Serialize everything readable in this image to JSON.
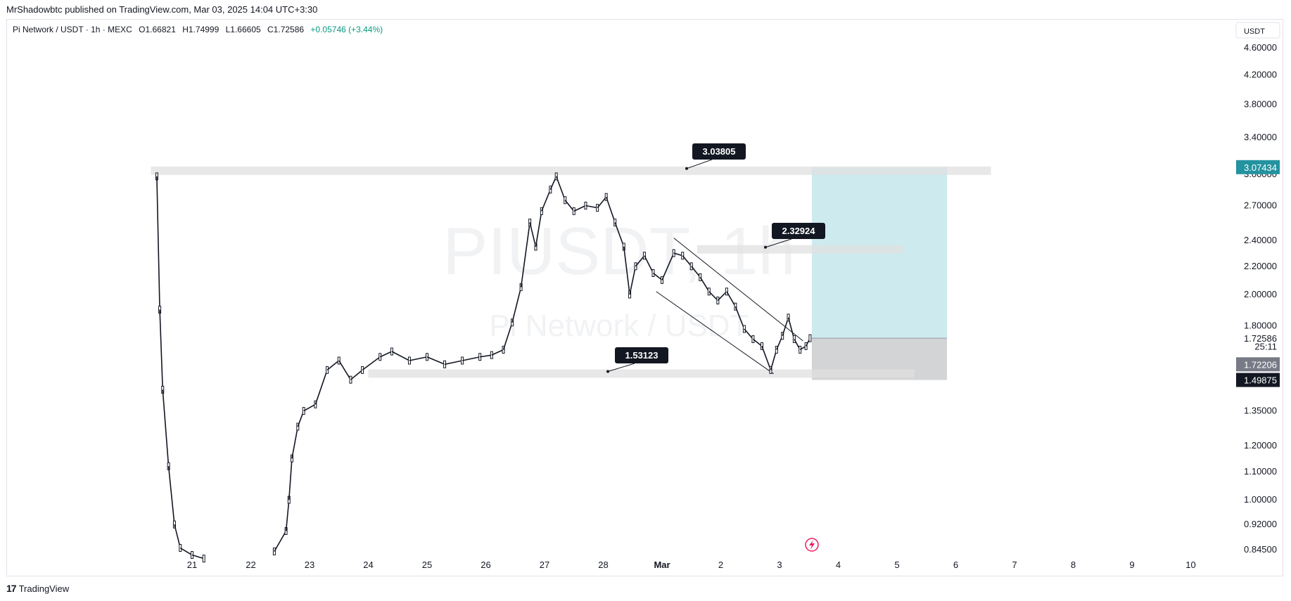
{
  "header": {
    "published_by": "MrShadowbtc published on TradingView.com, Mar 03, 2025 14:04 UTC+3:30"
  },
  "legend": {
    "symbol": "Pi Network / USDT · 1h · MEXC",
    "open": "O1.66821",
    "high": "H1.74999",
    "low": "L1.66605",
    "close": "C1.72586",
    "change": "+0.05746 (+3.44%)"
  },
  "watermark": {
    "ticker": "PIUSDT, 1h",
    "name": "Pi Network / USDT"
  },
  "footer": {
    "logo_text": "TradingView",
    "logo_icon": "tradingview-logo-icon"
  },
  "colors": {
    "up": "#131722",
    "down": "#131722",
    "profit_zone": "#b2dfe6",
    "loss_zone": "#c8c9cc",
    "level_line": "#e0e0e0",
    "teal_badge": "#22939f",
    "dark_badge": "#131722",
    "gray_badge": "#787b86"
  },
  "chart_data": {
    "type": "candlestick",
    "symbol": "PIUSDT",
    "interval": "1h",
    "price_axis": {
      "unit": "USDT",
      "scale": "log",
      "ticks": [
        4.6,
        4.2,
        3.8,
        3.4,
        3.0,
        2.7,
        2.4,
        2.2,
        2.0,
        1.8,
        1.35,
        1.2,
        1.1,
        1.0,
        0.92,
        0.845
      ],
      "tick_labels": [
        "4.60000",
        "4.20000",
        "3.80000",
        "3.40000",
        "3.00000",
        "2.70000",
        "2.40000",
        "2.20000",
        "2.00000",
        "1.80000",
        "1.35000",
        "1.20000",
        "1.10000",
        "1.00000",
        "0.92000",
        "0.84500"
      ]
    },
    "time_axis": {
      "labels": [
        "21",
        "22",
        "23",
        "24",
        "25",
        "26",
        "27",
        "28",
        "Mar",
        "2",
        "3",
        "4",
        "5",
        "6",
        "7",
        "8",
        "9",
        "10"
      ],
      "label_days": [
        21,
        22,
        23,
        24,
        25,
        26,
        27,
        28,
        29,
        30,
        31,
        32,
        33,
        34,
        35,
        36,
        37,
        38
      ]
    },
    "price_badges": [
      {
        "label": "3.07434",
        "value": 3.07434,
        "style": "teal"
      },
      {
        "label": "1.72586",
        "value": 1.72586,
        "style": "plain"
      },
      {
        "label": "25:11",
        "value": 1.68,
        "style": "plain"
      },
      {
        "label": "1.72206",
        "value": 1.58,
        "style": "gray"
      },
      {
        "label": "1.49875",
        "value": 1.49875,
        "style": "dark"
      }
    ],
    "horizontal_levels": [
      {
        "label": "3.03805",
        "value": 3.03805,
        "from_day": 20.3,
        "to_day": 34.6
      },
      {
        "label": "2.32924",
        "value": 2.32924,
        "from_day": 29.6,
        "to_day": 33.1
      },
      {
        "label": "1.53123",
        "value": 1.53123,
        "from_day": 24.0,
        "to_day": 33.3
      }
    ],
    "position": {
      "type": "long",
      "entry": 1.72586,
      "target": 3.07434,
      "stop": 1.49875,
      "from_day": 31.55,
      "to_day": 33.85
    },
    "channel": {
      "upper": [
        [
          29.2,
          2.42
        ],
        [
          31.4,
          1.71
        ]
      ],
      "lower": [
        [
          28.9,
          2.02
        ],
        [
          30.9,
          1.53
        ]
      ]
    },
    "series": [
      {
        "day": 20.4,
        "close": 2.98
      },
      {
        "day": 20.45,
        "close": 1.9
      },
      {
        "day": 20.5,
        "close": 1.45
      },
      {
        "day": 20.6,
        "close": 1.12
      },
      {
        "day": 20.7,
        "close": 0.92
      },
      {
        "day": 20.8,
        "close": 0.85
      },
      {
        "day": 21.0,
        "close": 0.83
      },
      {
        "day": 21.2,
        "close": 0.82
      },
      {
        "day": 22.4,
        "close": 0.84
      },
      {
        "day": 22.6,
        "close": 0.9
      },
      {
        "day": 22.65,
        "close": 1.0
      },
      {
        "day": 22.7,
        "close": 1.15
      },
      {
        "day": 22.8,
        "close": 1.28
      },
      {
        "day": 22.9,
        "close": 1.35
      },
      {
        "day": 23.1,
        "close": 1.38
      },
      {
        "day": 23.3,
        "close": 1.55
      },
      {
        "day": 23.5,
        "close": 1.6
      },
      {
        "day": 23.7,
        "close": 1.5
      },
      {
        "day": 23.9,
        "close": 1.55
      },
      {
        "day": 24.2,
        "close": 1.62
      },
      {
        "day": 24.4,
        "close": 1.65
      },
      {
        "day": 24.7,
        "close": 1.6
      },
      {
        "day": 25.0,
        "close": 1.62
      },
      {
        "day": 25.3,
        "close": 1.58
      },
      {
        "day": 25.6,
        "close": 1.6
      },
      {
        "day": 25.9,
        "close": 1.62
      },
      {
        "day": 26.1,
        "close": 1.63
      },
      {
        "day": 26.3,
        "close": 1.66
      },
      {
        "day": 26.45,
        "close": 1.82
      },
      {
        "day": 26.6,
        "close": 2.05
      },
      {
        "day": 26.75,
        "close": 2.55
      },
      {
        "day": 26.85,
        "close": 2.35
      },
      {
        "day": 26.95,
        "close": 2.65
      },
      {
        "day": 27.1,
        "close": 2.85
      },
      {
        "day": 27.2,
        "close": 2.98
      },
      {
        "day": 27.35,
        "close": 2.75
      },
      {
        "day": 27.5,
        "close": 2.65
      },
      {
        "day": 27.7,
        "close": 2.7
      },
      {
        "day": 27.9,
        "close": 2.68
      },
      {
        "day": 28.05,
        "close": 2.78
      },
      {
        "day": 28.2,
        "close": 2.55
      },
      {
        "day": 28.35,
        "close": 2.35
      },
      {
        "day": 28.45,
        "close": 2.0
      },
      {
        "day": 28.55,
        "close": 2.2
      },
      {
        "day": 28.7,
        "close": 2.28
      },
      {
        "day": 28.85,
        "close": 2.15
      },
      {
        "day": 29.0,
        "close": 2.1
      },
      {
        "day": 29.2,
        "close": 2.3
      },
      {
        "day": 29.35,
        "close": 2.28
      },
      {
        "day": 29.5,
        "close": 2.2
      },
      {
        "day": 29.65,
        "close": 2.12
      },
      {
        "day": 29.8,
        "close": 2.02
      },
      {
        "day": 29.95,
        "close": 1.96
      },
      {
        "day": 30.1,
        "close": 2.02
      },
      {
        "day": 30.25,
        "close": 1.92
      },
      {
        "day": 30.4,
        "close": 1.78
      },
      {
        "day": 30.55,
        "close": 1.72
      },
      {
        "day": 30.7,
        "close": 1.68
      },
      {
        "day": 30.85,
        "close": 1.55
      },
      {
        "day": 30.95,
        "close": 1.66
      },
      {
        "day": 31.05,
        "close": 1.74
      },
      {
        "day": 31.15,
        "close": 1.85
      },
      {
        "day": 31.25,
        "close": 1.72
      },
      {
        "day": 31.35,
        "close": 1.66
      },
      {
        "day": 31.45,
        "close": 1.68
      },
      {
        "day": 31.52,
        "close": 1.72586
      }
    ]
  }
}
